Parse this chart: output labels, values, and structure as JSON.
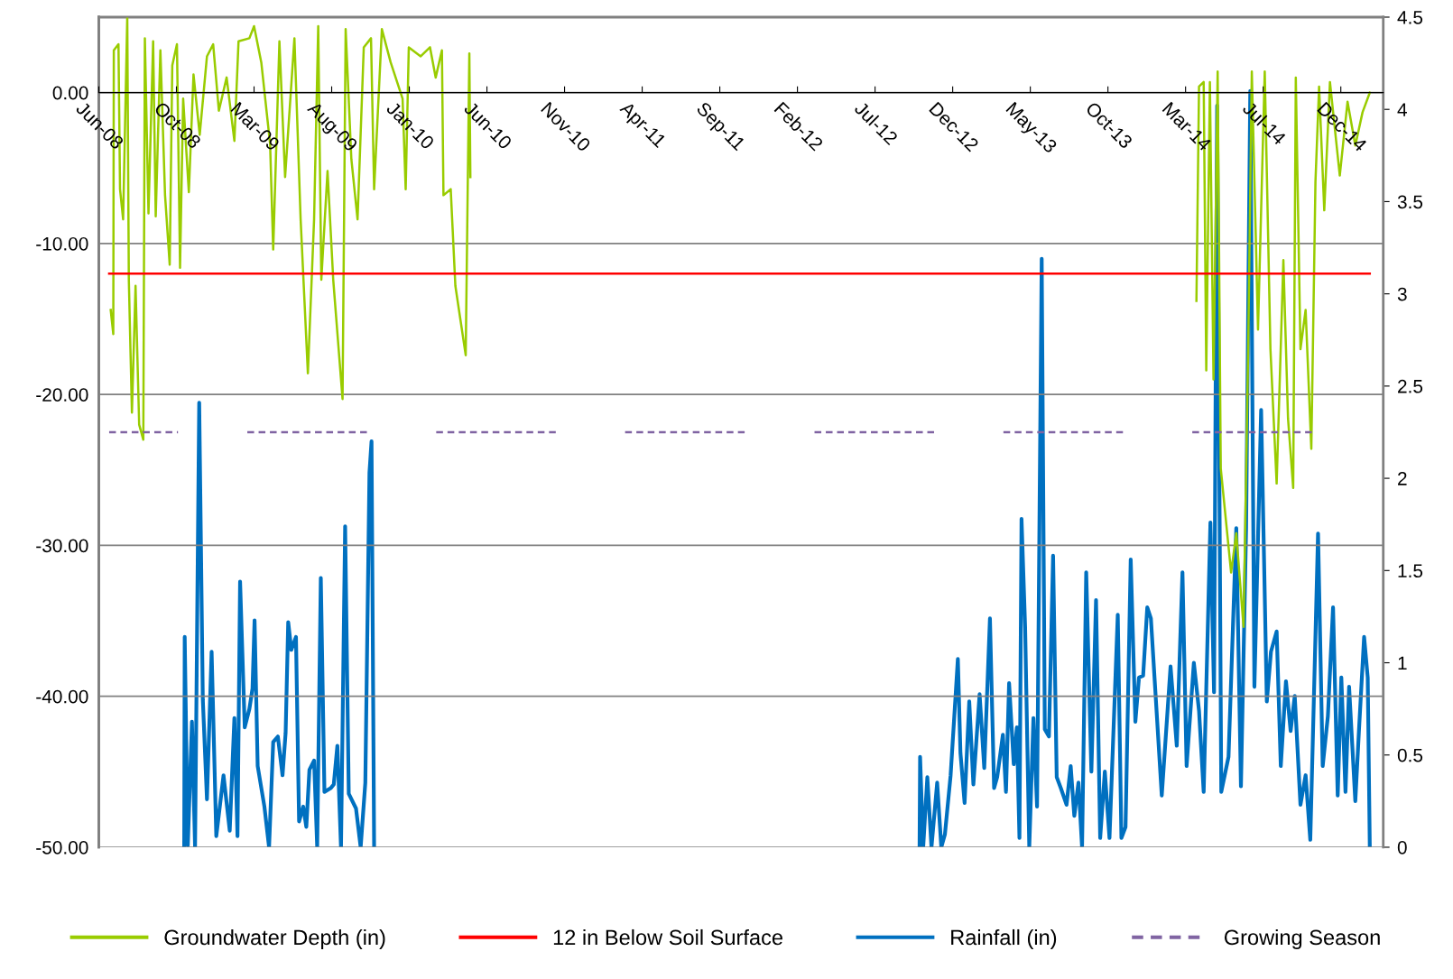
{
  "chart_data": {
    "type": "line",
    "xlim": [
      "2008-06-01",
      "2015-03-19"
    ],
    "xticks": [
      {
        "value": "2008-06-01",
        "label": "Jun-08"
      },
      {
        "value": "2008-10-29",
        "label": "Oct-08"
      },
      {
        "value": "2009-03-28",
        "label": "Mar-09"
      },
      {
        "value": "2009-08-25",
        "label": "Aug-09"
      },
      {
        "value": "2010-01-22",
        "label": "Jan-10"
      },
      {
        "value": "2010-06-21",
        "label": "Jun-10"
      },
      {
        "value": "2010-11-18",
        "label": "Nov-10"
      },
      {
        "value": "2011-04-17",
        "label": "Apr-11"
      },
      {
        "value": "2011-09-14",
        "label": "Sep-11"
      },
      {
        "value": "2012-02-11",
        "label": "Feb-12"
      },
      {
        "value": "2012-07-10",
        "label": "Jul-12"
      },
      {
        "value": "2012-12-07",
        "label": "Dec-12"
      },
      {
        "value": "2013-05-06",
        "label": "May-13"
      },
      {
        "value": "2013-10-03",
        "label": "Oct-13"
      },
      {
        "value": "2014-03-02",
        "label": "Mar-14"
      },
      {
        "value": "2014-07-30",
        "label": "Jul-14"
      },
      {
        "value": "2014-12-27",
        "label": "Dec-14"
      }
    ],
    "ylim": [
      -50,
      5
    ],
    "yticks": [
      {
        "value": 0,
        "label": "0.00"
      },
      {
        "value": -10,
        "label": "-10.00"
      },
      {
        "value": -20,
        "label": "-20.00"
      },
      {
        "value": -30,
        "label": "-30.00"
      },
      {
        "value": -40,
        "label": "-40.00"
      },
      {
        "value": -50,
        "label": "-50.00"
      }
    ],
    "y2lim": [
      0,
      4.5
    ],
    "y2ticks": [
      0,
      0.5,
      1,
      1.5,
      2,
      2.5,
      3,
      3.5,
      4,
      4.5
    ],
    "grid": "y",
    "legend": "bottom",
    "series": [
      {
        "name": "Groundwater Depth (in)",
        "color": "#99cc00",
        "x": [
          "2008-06-24",
          "2008-06-29",
          "2008-06-30",
          "2008-07-09",
          "2008-07-12",
          "2008-07-18",
          "2008-07-26",
          "2008-07-29",
          "2008-08-04",
          "2008-08-11",
          "2008-08-18",
          "2008-08-26",
          "2008-08-29",
          "2008-09-05",
          "2008-09-14",
          "2008-09-19",
          "2008-09-28",
          "2008-10-07",
          "2008-10-16",
          "2008-10-21",
          "2008-10-30",
          "2008-11-05",
          "2008-11-11",
          "2008-11-22",
          "2008-12-01",
          "2008-12-13",
          "2008-12-27",
          "2009-01-08",
          "2009-01-19",
          "2009-02-03",
          "2009-02-18",
          "2009-02-26",
          "2009-03-19",
          "2009-03-28",
          "2009-04-11",
          "2009-04-28",
          "2009-05-04",
          "2009-05-16",
          "2009-05-27",
          "2009-06-14",
          "2009-06-26",
          "2009-07-10",
          "2009-07-22",
          "2009-07-30",
          "2009-08-05",
          "2009-08-17",
          "2009-08-28",
          "2009-09-15",
          "2009-09-21",
          "2009-10-02",
          "2009-10-14",
          "2009-10-26",
          "2009-11-09",
          "2009-11-15",
          "2009-11-30",
          "2009-12-17",
          "2010-01-09",
          "2010-01-15",
          "2010-01-21",
          "2010-02-13",
          "2010-03-03",
          "2010-03-14",
          "2010-03-26",
          "2010-03-29",
          "2010-04-12",
          "2010-04-21",
          "2010-05-11",
          "2010-05-18",
          "2010-05-20",
          "2012-01-01",
          "2014-03-23",
          "2014-03-28",
          "2014-04-06",
          "2014-04-11",
          "2014-04-18",
          "2014-04-25",
          "2014-05-03",
          "2014-05-09",
          "2014-05-29",
          "2014-06-08",
          "2014-06-22",
          "2014-07-01",
          "2014-07-08",
          "2014-07-20",
          "2014-08-02",
          "2014-08-13",
          "2014-08-25",
          "2014-09-07",
          "2014-09-16",
          "2014-09-26",
          "2014-10-01",
          "2014-10-10",
          "2014-10-20",
          "2014-10-31",
          "2014-11-08",
          "2014-11-15",
          "2014-11-25",
          "2014-12-06",
          "2014-12-25",
          "2015-01-09",
          "2015-01-24",
          "2015-02-07",
          "2015-02-21"
        ],
        "values": [
          -14.4,
          -16.0,
          2.8,
          3.2,
          -6.4,
          -8.4,
          5.0,
          -12.4,
          -21.2,
          -12.8,
          -22.0,
          -23.0,
          3.6,
          -8.0,
          3.4,
          -8.2,
          2.8,
          -6.8,
          -11.4,
          1.8,
          3.2,
          -11.6,
          -0.4,
          -6.6,
          1.2,
          -2.8,
          2.4,
          3.2,
          -1.2,
          1.0,
          -3.2,
          3.4,
          3.6,
          4.4,
          2.0,
          -3.4,
          -10.4,
          3.4,
          -5.6,
          3.6,
          -8.4,
          -18.6,
          -8.4,
          4.4,
          -12.4,
          -5.2,
          -12.4,
          -20.3,
          4.2,
          -4.4,
          -8.4,
          3.0,
          3.6,
          -6.4,
          4.2,
          2.0,
          -0.4,
          -6.4,
          3.0,
          2.4,
          3.0,
          1.0,
          2.8,
          -6.8,
          -6.4,
          -12.8,
          -17.4,
          2.6,
          -5.6,
          null,
          -13.8,
          0.4,
          0.7,
          -18.4,
          0.7,
          -19.0,
          1.4,
          -24.9,
          -31.8,
          -29.2,
          -35.4,
          -17.0,
          1.4,
          -15.7,
          1.4,
          -17.0,
          -25.9,
          -11.1,
          -21.6,
          -26.2,
          1.0,
          -17.0,
          -14.4,
          -23.6,
          -5.9,
          0.4,
          -7.8,
          0.7,
          -5.5,
          -0.6,
          -3.5,
          -1.3,
          0.0
        ]
      },
      {
        "name": "12 in Below Soil Surface",
        "color": "#ff0000",
        "x": [
          "2008-06-21",
          "2015-02-21"
        ],
        "values": [
          -12,
          -12
        ]
      },
      {
        "name": "Rainfall (in)",
        "color": "#0070c0",
        "axis": "y2",
        "x": [
          "2008-11-13",
          "2008-11-14",
          "2008-11-20",
          "2008-11-28",
          "2008-12-04",
          "2008-12-12",
          "2008-12-19",
          "2008-12-27",
          "2009-01-05",
          "2009-01-14",
          "2009-01-28",
          "2009-02-09",
          "2009-02-18",
          "2009-02-24",
          "2009-03-01",
          "2009-03-10",
          "2009-03-19",
          "2009-03-25",
          "2009-03-29",
          "2009-04-04",
          "2009-04-17",
          "2009-04-26",
          "2009-05-04",
          "2009-05-13",
          "2009-05-22",
          "2009-05-28",
          "2009-06-02",
          "2009-06-08",
          "2009-06-17",
          "2009-06-23",
          "2009-07-01",
          "2009-07-07",
          "2009-07-13",
          "2009-07-22",
          "2009-07-28",
          "2009-08-04",
          "2009-08-11",
          "2009-08-23",
          "2009-08-29",
          "2009-09-05",
          "2009-09-12",
          "2009-09-20",
          "2009-09-27",
          "2009-10-11",
          "2009-10-20",
          "2009-10-29",
          "2009-11-06",
          "2009-11-10",
          "2009-11-15",
          "2011-01-01",
          "2012-10-04",
          "2012-10-05",
          "2012-10-11",
          "2012-10-19",
          "2012-10-27",
          "2012-11-07",
          "2012-11-15",
          "2012-11-22",
          "2012-12-03",
          "2012-12-17",
          "2012-12-22",
          "2012-12-30",
          "2013-01-08",
          "2013-01-16",
          "2013-01-28",
          "2013-02-06",
          "2013-02-17",
          "2013-02-25",
          "2013-03-03",
          "2013-03-14",
          "2013-03-20",
          "2013-03-26",
          "2013-04-04",
          "2013-04-10",
          "2013-04-15",
          "2013-04-19",
          "2013-04-26",
          "2013-05-04",
          "2013-05-12",
          "2013-05-19",
          "2013-05-28",
          "2013-06-03",
          "2013-06-11",
          "2013-06-19",
          "2013-06-26",
          "2013-07-04",
          "2013-07-15",
          "2013-07-23",
          "2013-07-30",
          "2013-08-07",
          "2013-08-14",
          "2013-08-22",
          "2013-09-01",
          "2013-09-10",
          "2013-09-18",
          "2013-09-27",
          "2013-10-06",
          "2013-10-22",
          "2013-10-29",
          "2013-11-06",
          "2013-11-16",
          "2013-11-25",
          "2013-12-02",
          "2013-12-10",
          "2013-12-18",
          "2013-12-25",
          "2014-01-15",
          "2014-02-01",
          "2014-02-13",
          "2014-02-24",
          "2014-03-04",
          "2014-03-18",
          "2014-03-28",
          "2014-04-06",
          "2014-04-19",
          "2014-04-26",
          "2014-05-02",
          "2014-05-10",
          "2014-05-24",
          "2014-06-08",
          "2014-06-17",
          "2014-06-27",
          "2014-07-05",
          "2014-07-13",
          "2014-07-26",
          "2014-08-06",
          "2014-08-14",
          "2014-08-25",
          "2014-09-02",
          "2014-09-12",
          "2014-09-21",
          "2014-09-29",
          "2014-10-10",
          "2014-10-20",
          "2014-10-29",
          "2014-11-13",
          "2014-11-22",
          "2014-12-02",
          "2014-12-12",
          "2014-12-21",
          "2014-12-28",
          "2015-01-05",
          "2015-01-12",
          "2015-01-24",
          "2015-01-31",
          "2015-02-10",
          "2015-02-17",
          "2015-02-21"
        ],
        "values": [
          0,
          1.14,
          0.01,
          0.68,
          0,
          2.41,
          0.8,
          0.26,
          1.06,
          0.06,
          0.39,
          0.09,
          0.7,
          0.06,
          1.44,
          0.65,
          0.75,
          0.86,
          1.23,
          0.44,
          0.22,
          0,
          0.57,
          0.6,
          0.39,
          0.62,
          1.22,
          1.07,
          1.14,
          0.14,
          0.22,
          0.11,
          0.42,
          0.47,
          0,
          1.46,
          0.3,
          0.32,
          0.34,
          0.55,
          0,
          1.74,
          0.29,
          0.21,
          0,
          0.35,
          2.03,
          2.2,
          0,
          null,
          0,
          0.49,
          0,
          0.38,
          0,
          0.35,
          0,
          0.07,
          0.39,
          1.02,
          0.51,
          0.24,
          0.79,
          0.34,
          0.83,
          0.43,
          1.24,
          0.32,
          0.38,
          0.61,
          0.3,
          0.89,
          0.45,
          0.65,
          0.05,
          1.78,
          1.19,
          0,
          0.7,
          0.22,
          3.19,
          0.64,
          0.6,
          1.58,
          0.38,
          0.32,
          0.23,
          0.44,
          0.17,
          0.35,
          0,
          1.49,
          0.41,
          1.34,
          0.05,
          0.41,
          0.05,
          1.26,
          0.05,
          0.11,
          1.56,
          0.68,
          0.92,
          0.93,
          1.3,
          1.24,
          0.28,
          0.98,
          0.55,
          1.49,
          0.44,
          1.0,
          0.74,
          0.3,
          1.76,
          0.84,
          4.02,
          0.3,
          0.49,
          1.73,
          0.33,
          1.73,
          4.1,
          0.87,
          2.37,
          0.79,
          1.06,
          1.17,
          0.44,
          0.9,
          0.63,
          0.82,
          0.23,
          0.39,
          0.04,
          1.7,
          0.44,
          0.71,
          1.3,
          0.28,
          0.92,
          0.3,
          0.87,
          0.25,
          0.63,
          1.14,
          0.92,
          0
        ]
      },
      {
        "name": "Growing Season",
        "color": "#8064a2",
        "line_style": "dashed",
        "x": [
          "2008-06-21",
          "2008-11-01",
          "2009-01-01",
          "2009-03-15",
          "2009-11-01",
          "2010-01-01",
          "2010-03-15",
          "2010-11-01",
          "2011-01-01",
          "2011-03-15",
          "2011-11-01",
          "2012-01-01",
          "2012-03-15",
          "2012-11-01",
          "2013-01-01",
          "2013-03-15",
          "2013-11-01",
          "2014-01-01",
          "2014-03-15",
          "2014-11-01"
        ],
        "values": [
          -22.5,
          -22.5,
          null,
          -22.5,
          -22.5,
          null,
          -22.5,
          -22.5,
          null,
          -22.5,
          -22.5,
          null,
          -22.5,
          -22.5,
          null,
          -22.5,
          -22.5,
          null,
          -22.5,
          -22.5
        ]
      }
    ]
  }
}
